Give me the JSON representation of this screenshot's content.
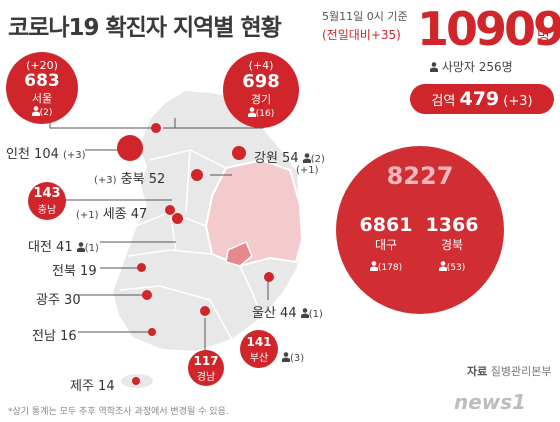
{
  "header": {
    "title": "코로나19 확진자 지역별 현황",
    "as_of": "5월11일 0시 기준",
    "daily_change": "(전일대비+35)",
    "total": "10909",
    "total_unit": "명",
    "deaths": "사망자 256명",
    "quarantine_label": "검역",
    "quarantine_value": "479",
    "quarantine_change": "(+3)"
  },
  "regions": {
    "seoul": {
      "change": "(+20)",
      "count": "683",
      "name": "서울",
      "deaths": "(2)"
    },
    "gyeonggi": {
      "change": "(+4)",
      "count": "698",
      "name": "경기",
      "deaths": "(16)"
    },
    "incheon": {
      "text": "인천 104",
      "change": "(+3)"
    },
    "gangwon": {
      "text": "강원 54",
      "deaths": "(2)",
      "change": "(+1)"
    },
    "chungbuk": {
      "change": "(+3)",
      "text": "충북 52"
    },
    "chungnam": {
      "count": "143",
      "name": "충남"
    },
    "sejong": {
      "change": "(+1)",
      "text": "세종 47"
    },
    "daejeon": {
      "text": "대전 41",
      "deaths": "(1)"
    },
    "jeonbuk": {
      "text": "전북 19"
    },
    "gwangju": {
      "text": "광주 30"
    },
    "jeonnam": {
      "text": "전남 16"
    },
    "gyeongnam": {
      "count": "117",
      "name": "경남"
    },
    "busan": {
      "count": "141",
      "name": "부산",
      "deaths": "(3)"
    },
    "ulsan": {
      "text": "울산 44",
      "deaths": "(1)"
    },
    "jeju": {
      "text": "제주 14"
    },
    "daegu_gyeongbuk": {
      "combined": "8227",
      "daegu_count": "6861",
      "daegu_name": "대구",
      "daegu_deaths": "(178)",
      "gyeongbuk_count": "1366",
      "gyeongbuk_name": "경북",
      "gyeongbuk_deaths": "(53)"
    }
  },
  "footer": {
    "note": "*상기 통계는 모두 추후 역학조사 과정에서 변경될 수 있음.",
    "source_label": "자료",
    "source": "질병관리본부",
    "logo": "news1"
  },
  "colors": {
    "accent": "#d0262b",
    "map": "#e6e6e6",
    "highlight": "#f3cbcc"
  }
}
